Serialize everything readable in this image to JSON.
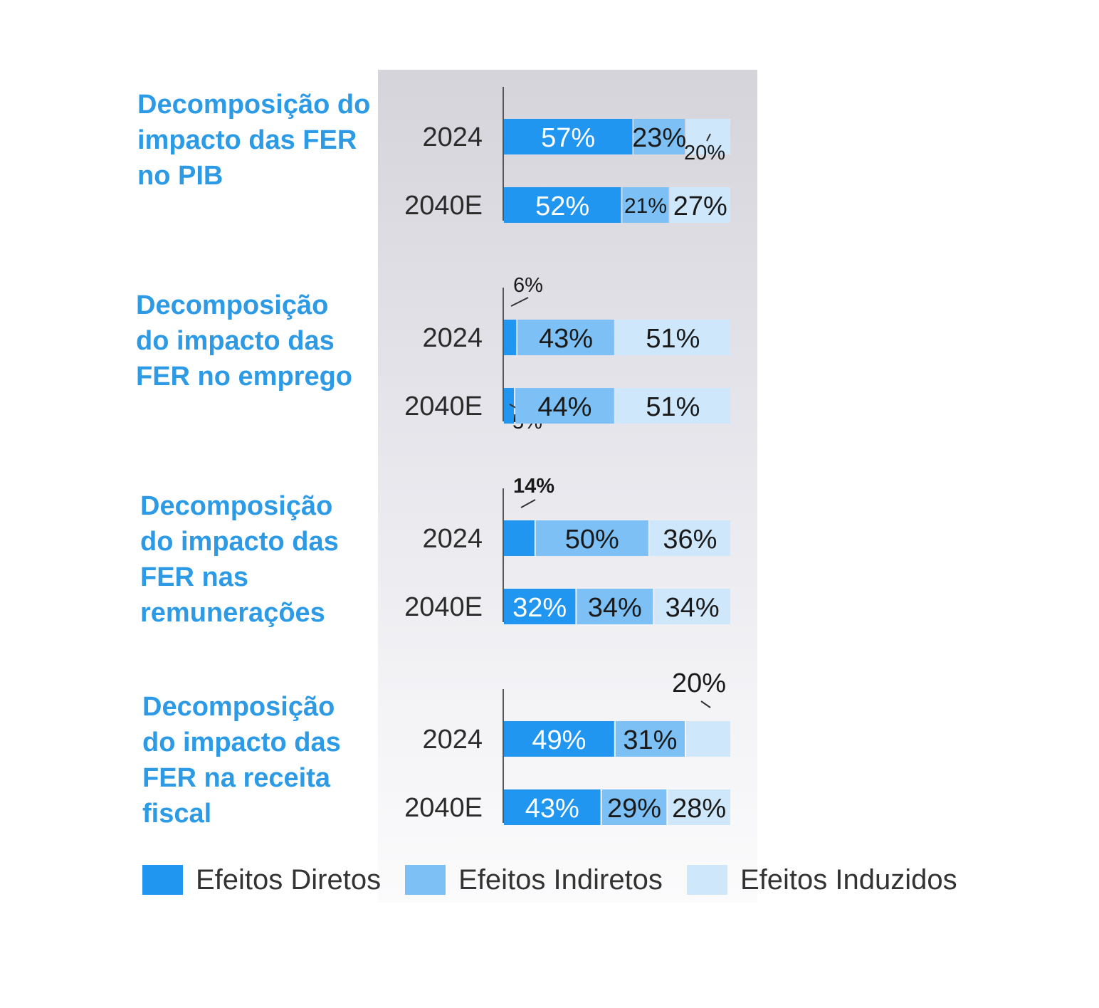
{
  "colors": {
    "diretos": "#2196f0",
    "indiretos": "#7cc0f5",
    "induzidos": "#cfe7fa"
  },
  "legend": [
    {
      "label": "Efeitos Diretos",
      "color": "#2196f0"
    },
    {
      "label": "Efeitos Indiretos",
      "color": "#7cc0f5"
    },
    {
      "label": "Efeitos Induzidos",
      "color": "#cfe7fa"
    }
  ],
  "chart_data": {
    "type": "bar",
    "orientation": "horizontal",
    "stacked": "100%",
    "series_names": [
      "Efeitos Diretos",
      "Efeitos Indiretos",
      "Efeitos Induzidos"
    ],
    "groups": [
      {
        "title": "Decomposição do impacto das FER no PIB",
        "rows": [
          {
            "label": "2024",
            "values": [
              57,
              23,
              20
            ],
            "labels": [
              "57%",
              "23%",
              "20%"
            ]
          },
          {
            "label": "2040E",
            "values": [
              52,
              21,
              27
            ],
            "labels": [
              "52%",
              "21%",
              "27%"
            ]
          }
        ]
      },
      {
        "title": "Decomposição do impacto das FER no emprego",
        "rows": [
          {
            "label": "2024",
            "values": [
              6,
              43,
              51
            ],
            "labels": [
              "6%",
              "43%",
              "51%"
            ]
          },
          {
            "label": "2040E",
            "values": [
              5,
              44,
              51
            ],
            "labels": [
              "5%",
              "44%",
              "51%"
            ]
          }
        ]
      },
      {
        "title": "Decomposição do impacto das FER nas remunerações",
        "rows": [
          {
            "label": "2024",
            "values": [
              14,
              50,
              36
            ],
            "labels": [
              "14%",
              "50%",
              "36%"
            ]
          },
          {
            "label": "2040E",
            "values": [
              32,
              34,
              34
            ],
            "labels": [
              "32%",
              "34%",
              "34%"
            ]
          }
        ]
      },
      {
        "title": "Decomposição do impacto das FER na receita fiscal",
        "rows": [
          {
            "label": "2024",
            "values": [
              49,
              31,
              20
            ],
            "labels": [
              "49%",
              "31%",
              "20%"
            ]
          },
          {
            "label": "2040E",
            "values": [
              43,
              29,
              28
            ],
            "labels": [
              "43%",
              "29%",
              "28%"
            ]
          }
        ]
      }
    ]
  }
}
